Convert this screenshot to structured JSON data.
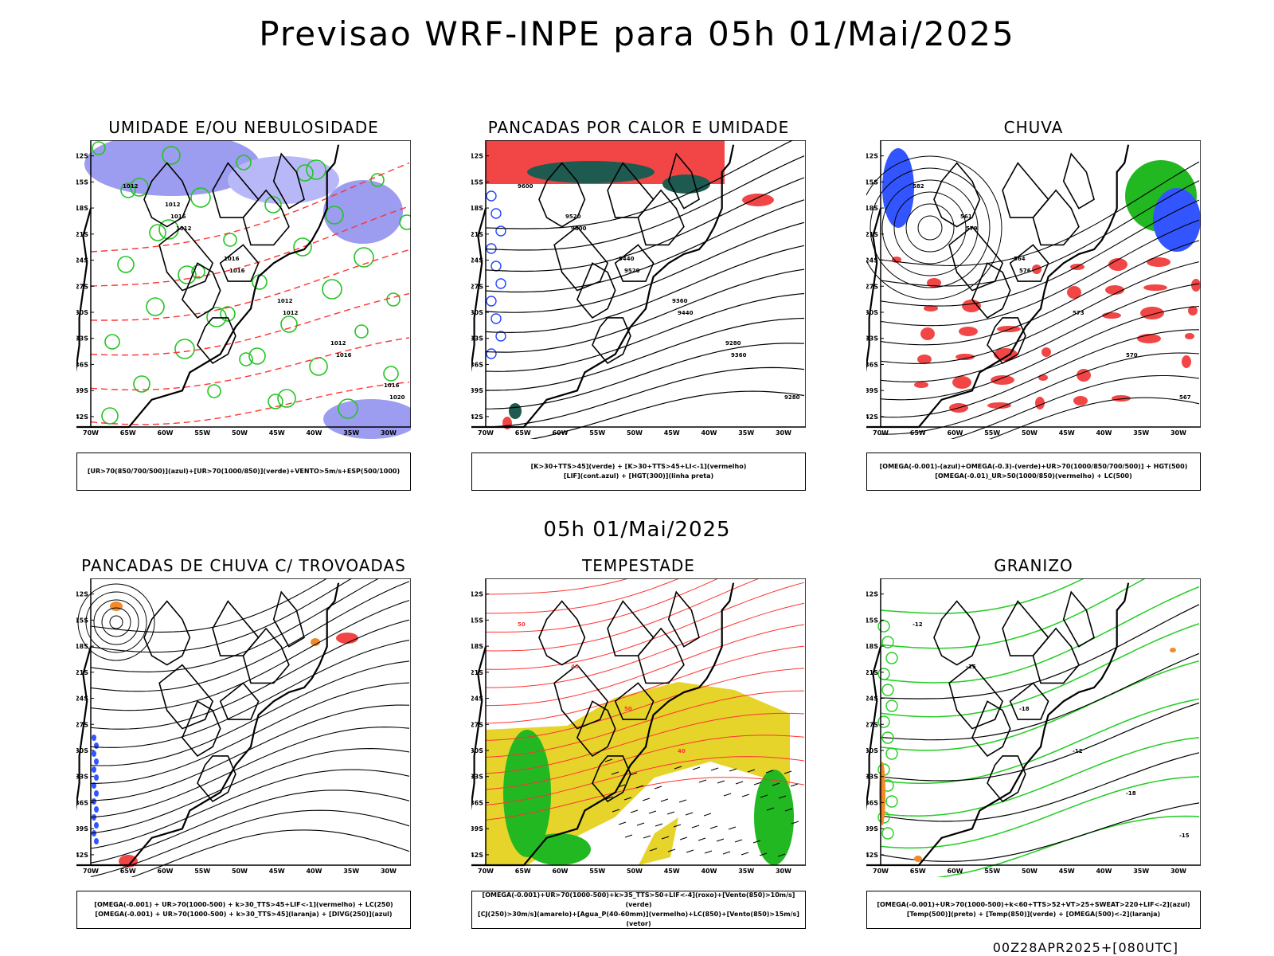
{
  "header": {
    "title": "Previsao WRF-INPE  para 05h 01/Mai/2025"
  },
  "middle_title": "05h 01/Mai/2025",
  "footer": "00Z28APR2025+[080UTC]",
  "axes": {
    "lat_labels": [
      "12S",
      "15S",
      "18S",
      "21S",
      "24S",
      "27S",
      "30S",
      "33S",
      "36S",
      "39S",
      "42S"
    ],
    "lon_labels": [
      "70W",
      "65W",
      "60W",
      "55W",
      "50W",
      "45W",
      "40W",
      "35W",
      "30W"
    ]
  },
  "panels": [
    {
      "id": "umidade",
      "title": "UMIDADE E/OU NEBULOSIDADE",
      "legend": [
        "[UR>70(850/700/500)](azul)+[UR>70(1000/850)](verde)+VENTO>5m/s+ESP(500/1000)"
      ],
      "contour_labels": [
        "1012",
        "1012",
        "1016",
        "1012",
        "1016",
        "1020",
        "1016",
        "1016",
        "1012",
        "1012",
        "1016",
        "1012"
      ]
    },
    {
      "id": "pancadas-calor",
      "title": "PANCADAS POR CALOR E UMIDADE",
      "legend": [
        "[K>30+TTS>45](verde) + [K>30+TTS>45+LI<-1](vermelho)",
        "[LIF](cont.azul) + [HGT(300)](linha preta)"
      ],
      "contour_labels": [
        "9600",
        "9600",
        "9520",
        "9440",
        "9360",
        "9280",
        "9520",
        "9440",
        "9360",
        "9280"
      ]
    },
    {
      "id": "chuva",
      "title": "CHUVA",
      "legend": [
        "[OMEGA(-0.001)-(azul)+OMEGA(-0.3)-(verde)+UR>70(1000/850/700/500)] + HGT(500)",
        "[OMEGA(-0.01)_UR>50(1000/850)(vermelho) + LC(500)"
      ],
      "contour_labels": [
        "582",
        "579",
        "576",
        "573",
        "570",
        "567",
        "561",
        "564"
      ]
    },
    {
      "id": "trovoadas",
      "title": "PANCADAS DE CHUVA C/ TROVOADAS",
      "legend": [
        "[OMEGA(-0.001) + UR>70(1000-500) + k>30_TTS>45+LIF<-1](vermelho) + LC(250)",
        "[OMEGA(-0.001) + UR>70(1000-500) + k>30_TTS>45](laranja) + [DIVG(250)](azul)"
      ],
      "contour_labels": []
    },
    {
      "id": "tempestade",
      "title": "TEMPESTADE",
      "legend": [
        "[OMEGA(-0.001)+UR>70(1000-500)+k>35_TTS>50+LIF<-4](roxo)+[Vento(850)>10m/s](verde)",
        "[CJ(250)>30m/s](amarelo)+[Agua_P(40-60mm)](vermelho)+LC(850)+[Vento(850)>15m/s](vetor)"
      ],
      "contour_labels": [
        "50",
        "40",
        "50",
        "40"
      ]
    },
    {
      "id": "granizo",
      "title": "GRANIZO",
      "legend": [
        "[OMEGA(-0.001)+UR>70(1000-500)+k<60+TTS>52+VT>25+SWEAT>220+LIF<-2](azul)",
        "[Temp(500)](preto) + [Temp(850)](verde) + [OMEGA(500)<-2](laranja)"
      ],
      "contour_labels": [
        "-12",
        "-15",
        "-18",
        "-12",
        "-18",
        "-15"
      ]
    }
  ]
}
